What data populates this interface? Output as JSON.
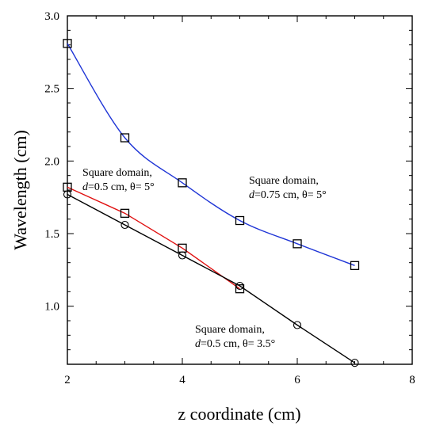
{
  "chart_data": {
    "type": "line",
    "xlabel": "z coordinate (cm)",
    "ylabel": "Wavelength (cm)",
    "xlim": [
      2,
      8
    ],
    "ylim": [
      0.6,
      3.0
    ],
    "xticks": [
      2,
      4,
      6,
      8
    ],
    "xtick_labels": [
      "2",
      "4",
      "6",
      "8"
    ],
    "yticks": [
      1.0,
      1.5,
      2.0,
      2.5,
      3.0
    ],
    "ytick_labels": [
      "1.0",
      "1.5",
      "2.0",
      "2.5",
      "3.0"
    ],
    "grid": false,
    "legend": "none",
    "series": [
      {
        "key": "blue",
        "color": "#1f35d6",
        "marker": "square",
        "smooth": true,
        "x": [
          2,
          3,
          4,
          5,
          6,
          7
        ],
        "y": [
          2.81,
          2.16,
          1.85,
          1.59,
          1.43,
          1.28
        ]
      },
      {
        "key": "red",
        "color": "#e01010",
        "marker": "square",
        "smooth": false,
        "x": [
          2,
          3,
          4,
          5
        ],
        "y": [
          1.82,
          1.64,
          1.4,
          1.12
        ]
      },
      {
        "key": "black",
        "color": "#000000",
        "marker": "circle",
        "smooth": false,
        "x": [
          2,
          3,
          4,
          5,
          6,
          7
        ],
        "y": [
          1.77,
          1.56,
          1.35,
          1.14,
          0.87,
          0.61
        ]
      }
    ],
    "annotations": [
      {
        "key": "blue-label",
        "line1": "Square domain,",
        "line2_italic": "d",
        "line2_rest": "=0.75 cm, θ= 5°"
      },
      {
        "key": "red-label",
        "line1": "Square domain,",
        "line2_italic": "d",
        "line2_rest": "=0.5 cm, θ= 5°"
      },
      {
        "key": "black-label",
        "line1": "Square domain,",
        "line2_italic": "d",
        "line2_rest": "=0.5 cm, θ= 3.5°"
      }
    ]
  }
}
